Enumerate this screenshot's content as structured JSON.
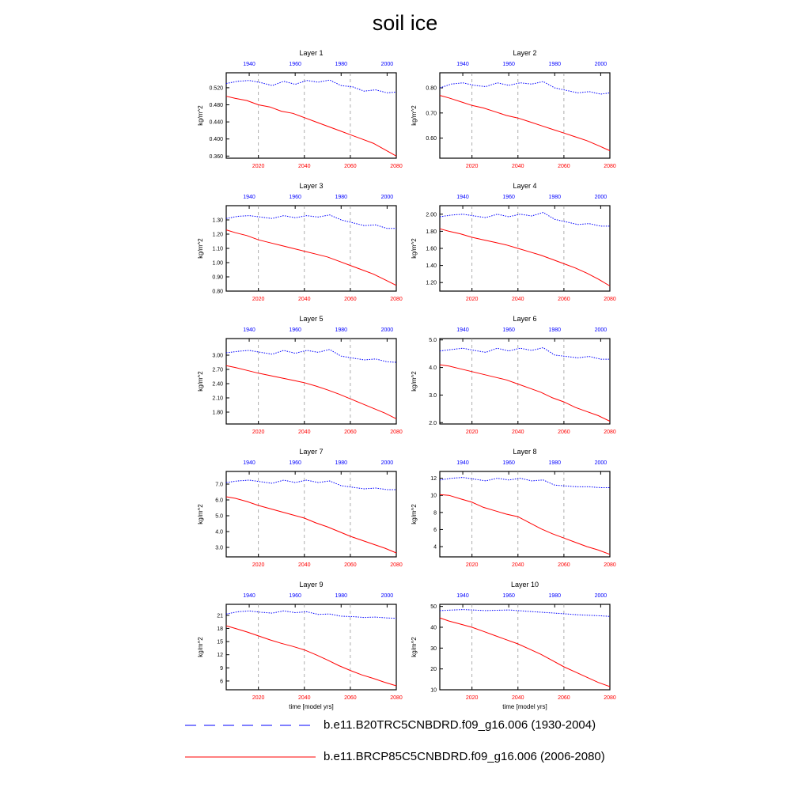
{
  "title": "soil ice",
  "legend": [
    {
      "label": "b.e11.B20TRC5CNBDRD.f09_g16.006 (1930-2004)",
      "color": "#0000ff",
      "style": "dashed"
    },
    {
      "label": "b.e11.BRCP85C5CNBDRD.f09_g16.006 (2006-2080)",
      "color": "#ff0000",
      "style": "solid"
    }
  ],
  "chart_data": [
    {
      "type": "line",
      "title": "Layer 1",
      "ylabel": "kg/m^2",
      "xlabel": "",
      "ylim": [
        0.355,
        0.555
      ],
      "yticks": [
        0.36,
        0.4,
        0.44,
        0.48,
        0.52
      ],
      "ytick_labels": [
        "0.360",
        "0.400",
        "0.440",
        "0.480",
        "0.520"
      ],
      "x_bottom_ticks": [
        "2020",
        "2040",
        "2060",
        "2080"
      ],
      "x_top_ticks": [
        "1940",
        "1960",
        "1980",
        "2000"
      ],
      "series": [
        {
          "axis": "top",
          "color": "#0000ff",
          "x": [
            1930,
            1935,
            1940,
            1945,
            1950,
            1955,
            1960,
            1965,
            1970,
            1975,
            1980,
            1985,
            1990,
            1995,
            2000,
            2004
          ],
          "y": [
            0.53,
            0.535,
            0.537,
            0.532,
            0.525,
            0.535,
            0.528,
            0.537,
            0.533,
            0.538,
            0.525,
            0.522,
            0.512,
            0.515,
            0.508,
            0.51
          ]
        },
        {
          "axis": "bottom",
          "color": "#ff0000",
          "x": [
            2006,
            2010,
            2015,
            2020,
            2025,
            2030,
            2035,
            2040,
            2045,
            2050,
            2055,
            2060,
            2065,
            2070,
            2075,
            2080
          ],
          "y": [
            0.5,
            0.495,
            0.49,
            0.48,
            0.475,
            0.465,
            0.46,
            0.45,
            0.44,
            0.43,
            0.42,
            0.41,
            0.4,
            0.39,
            0.375,
            0.36
          ]
        }
      ]
    },
    {
      "type": "line",
      "title": "Layer 2",
      "ylabel": "kg/m^2",
      "xlabel": "",
      "ylim": [
        0.52,
        0.86
      ],
      "yticks": [
        0.6,
        0.7,
        0.8
      ],
      "ytick_labels": [
        "0.60",
        "0.70",
        "0.80"
      ],
      "x_bottom_ticks": [
        "2020",
        "2040",
        "2060",
        "2080"
      ],
      "x_top_ticks": [
        "1940",
        "1960",
        "1980",
        "2000"
      ],
      "series": [
        {
          "axis": "top",
          "color": "#0000ff",
          "x": [
            1930,
            1935,
            1940,
            1945,
            1950,
            1955,
            1960,
            1965,
            1970,
            1975,
            1980,
            1985,
            1990,
            1995,
            2000,
            2004
          ],
          "y": [
            0.8,
            0.815,
            0.82,
            0.81,
            0.805,
            0.82,
            0.81,
            0.82,
            0.815,
            0.825,
            0.8,
            0.79,
            0.78,
            0.785,
            0.775,
            0.78
          ]
        },
        {
          "axis": "bottom",
          "color": "#ff0000",
          "x": [
            2006,
            2010,
            2015,
            2020,
            2025,
            2030,
            2035,
            2040,
            2045,
            2050,
            2055,
            2060,
            2065,
            2070,
            2075,
            2080
          ],
          "y": [
            0.77,
            0.76,
            0.745,
            0.73,
            0.72,
            0.705,
            0.69,
            0.68,
            0.665,
            0.65,
            0.635,
            0.62,
            0.605,
            0.59,
            0.57,
            0.55
          ]
        }
      ]
    },
    {
      "type": "line",
      "title": "Layer 3",
      "ylabel": "kg/m^2",
      "xlabel": "",
      "ylim": [
        0.8,
        1.4
      ],
      "yticks": [
        0.8,
        0.9,
        1.0,
        1.1,
        1.2,
        1.3
      ],
      "ytick_labels": [
        "0.80",
        "0.90",
        "1.00",
        "1.10",
        "1.20",
        "1.30"
      ],
      "x_bottom_ticks": [
        "2020",
        "2040",
        "2060",
        "2080"
      ],
      "x_top_ticks": [
        "1940",
        "1960",
        "1980",
        "2000"
      ],
      "series": [
        {
          "axis": "top",
          "color": "#0000ff",
          "x": [
            1930,
            1935,
            1940,
            1945,
            1950,
            1955,
            1960,
            1965,
            1970,
            1975,
            1980,
            1985,
            1990,
            1995,
            2000,
            2004
          ],
          "y": [
            1.31,
            1.325,
            1.33,
            1.32,
            1.31,
            1.33,
            1.315,
            1.33,
            1.32,
            1.335,
            1.3,
            1.28,
            1.26,
            1.265,
            1.24,
            1.24
          ]
        },
        {
          "axis": "bottom",
          "color": "#ff0000",
          "x": [
            2006,
            2010,
            2015,
            2020,
            2025,
            2030,
            2035,
            2040,
            2045,
            2050,
            2055,
            2060,
            2065,
            2070,
            2075,
            2080
          ],
          "y": [
            1.23,
            1.21,
            1.19,
            1.16,
            1.14,
            1.12,
            1.1,
            1.08,
            1.06,
            1.04,
            1.01,
            0.98,
            0.95,
            0.92,
            0.88,
            0.84
          ]
        }
      ]
    },
    {
      "type": "line",
      "title": "Layer 4",
      "ylabel": "kg/m^2",
      "xlabel": "",
      "ylim": [
        1.1,
        2.1
      ],
      "yticks": [
        1.2,
        1.4,
        1.6,
        1.8,
        2.0
      ],
      "ytick_labels": [
        "1.20",
        "1.40",
        "1.60",
        "1.80",
        "2.00"
      ],
      "x_bottom_ticks": [
        "2020",
        "2040",
        "2060",
        "2080"
      ],
      "x_top_ticks": [
        "1940",
        "1960",
        "1980",
        "2000"
      ],
      "series": [
        {
          "axis": "top",
          "color": "#0000ff",
          "x": [
            1930,
            1935,
            1940,
            1945,
            1950,
            1955,
            1960,
            1965,
            1970,
            1975,
            1980,
            1985,
            1990,
            1995,
            2000,
            2004
          ],
          "y": [
            1.97,
            1.99,
            2.0,
            1.98,
            1.96,
            2.0,
            1.97,
            2.0,
            1.98,
            2.02,
            1.94,
            1.91,
            1.88,
            1.89,
            1.86,
            1.86
          ]
        },
        {
          "axis": "bottom",
          "color": "#ff0000",
          "x": [
            2006,
            2010,
            2015,
            2020,
            2025,
            2030,
            2035,
            2040,
            2045,
            2050,
            2055,
            2060,
            2065,
            2070,
            2075,
            2080
          ],
          "y": [
            1.83,
            1.8,
            1.77,
            1.73,
            1.7,
            1.67,
            1.64,
            1.6,
            1.56,
            1.52,
            1.47,
            1.42,
            1.37,
            1.31,
            1.24,
            1.16
          ]
        }
      ]
    },
    {
      "type": "line",
      "title": "Layer 5",
      "ylabel": "kg/m^2",
      "xlabel": "",
      "ylim": [
        1.55,
        3.35
      ],
      "yticks": [
        1.8,
        2.1,
        2.4,
        2.7,
        3.0
      ],
      "ytick_labels": [
        "1.80",
        "2.10",
        "2.40",
        "2.70",
        "3.00"
      ],
      "x_bottom_ticks": [
        "2020",
        "2040",
        "2060",
        "2080"
      ],
      "x_top_ticks": [
        "1940",
        "1960",
        "1980",
        "2000"
      ],
      "series": [
        {
          "axis": "top",
          "color": "#0000ff",
          "x": [
            1930,
            1935,
            1940,
            1945,
            1950,
            1955,
            1960,
            1965,
            1970,
            1975,
            1980,
            1985,
            1990,
            1995,
            2000,
            2004
          ],
          "y": [
            3.05,
            3.08,
            3.1,
            3.06,
            3.02,
            3.1,
            3.04,
            3.1,
            3.06,
            3.12,
            2.98,
            2.94,
            2.9,
            2.92,
            2.86,
            2.85
          ]
        },
        {
          "axis": "bottom",
          "color": "#ff0000",
          "x": [
            2006,
            2010,
            2015,
            2020,
            2025,
            2030,
            2035,
            2040,
            2045,
            2050,
            2055,
            2060,
            2065,
            2070,
            2075,
            2080
          ],
          "y": [
            2.78,
            2.74,
            2.68,
            2.62,
            2.57,
            2.52,
            2.47,
            2.42,
            2.35,
            2.27,
            2.18,
            2.08,
            1.98,
            1.88,
            1.78,
            1.66
          ]
        }
      ]
    },
    {
      "type": "line",
      "title": "Layer 6",
      "ylabel": "kg/m^2",
      "xlabel": "",
      "ylim": [
        1.95,
        5.05
      ],
      "yticks": [
        2.0,
        3.0,
        4.0,
        5.0
      ],
      "ytick_labels": [
        "2.0",
        "3.0",
        "4.0",
        "5.0"
      ],
      "x_bottom_ticks": [
        "2020",
        "2040",
        "2060",
        "2080"
      ],
      "x_top_ticks": [
        "1940",
        "1960",
        "1980",
        "2000"
      ],
      "series": [
        {
          "axis": "top",
          "color": "#0000ff",
          "x": [
            1930,
            1935,
            1940,
            1945,
            1950,
            1955,
            1960,
            1965,
            1970,
            1975,
            1980,
            1985,
            1990,
            1995,
            2000,
            2004
          ],
          "y": [
            4.6,
            4.65,
            4.7,
            4.62,
            4.55,
            4.7,
            4.6,
            4.7,
            4.62,
            4.72,
            4.45,
            4.4,
            4.35,
            4.4,
            4.3,
            4.3
          ]
        },
        {
          "axis": "bottom",
          "color": "#ff0000",
          "x": [
            2006,
            2010,
            2015,
            2020,
            2025,
            2030,
            2035,
            2040,
            2045,
            2050,
            2055,
            2060,
            2065,
            2070,
            2075,
            2080
          ],
          "y": [
            4.1,
            4.05,
            3.95,
            3.85,
            3.75,
            3.65,
            3.55,
            3.4,
            3.25,
            3.1,
            2.9,
            2.75,
            2.55,
            2.4,
            2.25,
            2.05
          ]
        }
      ]
    },
    {
      "type": "line",
      "title": "Layer 7",
      "ylabel": "kg/m^2",
      "xlabel": "",
      "ylim": [
        2.4,
        7.8
      ],
      "yticks": [
        3.0,
        4.0,
        5.0,
        6.0,
        7.0
      ],
      "ytick_labels": [
        "3.0",
        "4.0",
        "5.0",
        "6.0",
        "7.0"
      ],
      "x_bottom_ticks": [
        "2020",
        "2040",
        "2060",
        "2080"
      ],
      "x_top_ticks": [
        "1940",
        "1960",
        "1980",
        "2000"
      ],
      "series": [
        {
          "axis": "top",
          "color": "#0000ff",
          "x": [
            1930,
            1935,
            1940,
            1945,
            1950,
            1955,
            1960,
            1965,
            1970,
            1975,
            1980,
            1985,
            1990,
            1995,
            2000,
            2004
          ],
          "y": [
            7.1,
            7.2,
            7.25,
            7.15,
            7.05,
            7.25,
            7.1,
            7.25,
            7.1,
            7.2,
            6.9,
            6.8,
            6.7,
            6.75,
            6.65,
            6.65
          ]
        },
        {
          "axis": "bottom",
          "color": "#ff0000",
          "x": [
            2006,
            2010,
            2015,
            2020,
            2025,
            2030,
            2035,
            2040,
            2045,
            2050,
            2055,
            2060,
            2065,
            2070,
            2075,
            2080
          ],
          "y": [
            6.2,
            6.1,
            5.9,
            5.65,
            5.45,
            5.25,
            5.05,
            4.85,
            4.55,
            4.3,
            4.0,
            3.7,
            3.45,
            3.2,
            2.95,
            2.65
          ]
        }
      ]
    },
    {
      "type": "line",
      "title": "Layer 8",
      "ylabel": "kg/m^2",
      "xlabel": "",
      "ylim": [
        2.8,
        12.8
      ],
      "yticks": [
        4,
        6,
        8,
        10,
        12
      ],
      "ytick_labels": [
        "4",
        "6",
        "8",
        "10",
        "12"
      ],
      "x_bottom_ticks": [
        "2020",
        "2040",
        "2060",
        "2080"
      ],
      "x_top_ticks": [
        "1940",
        "1960",
        "1980",
        "2000"
      ],
      "series": [
        {
          "axis": "top",
          "color": "#0000ff",
          "x": [
            1930,
            1935,
            1940,
            1945,
            1950,
            1955,
            1960,
            1965,
            1970,
            1975,
            1980,
            1985,
            1990,
            1995,
            2000,
            2004
          ],
          "y": [
            11.8,
            12.0,
            12.1,
            11.9,
            11.7,
            12.0,
            11.8,
            12.0,
            11.7,
            11.8,
            11.2,
            11.1,
            11.0,
            11.0,
            10.9,
            10.9
          ]
        },
        {
          "axis": "bottom",
          "color": "#ff0000",
          "x": [
            2006,
            2010,
            2015,
            2020,
            2025,
            2030,
            2035,
            2040,
            2045,
            2050,
            2055,
            2060,
            2065,
            2070,
            2075,
            2080
          ],
          "y": [
            10.1,
            10.0,
            9.6,
            9.2,
            8.6,
            8.2,
            7.8,
            7.5,
            6.8,
            6.1,
            5.5,
            5.0,
            4.5,
            4.0,
            3.6,
            3.1
          ]
        }
      ]
    },
    {
      "type": "line",
      "title": "Layer 9",
      "ylabel": "kg/m^2",
      "xlabel": "time [model yrs]",
      "ylim": [
        4.0,
        23.5
      ],
      "yticks": [
        6,
        9,
        12,
        15,
        18,
        21
      ],
      "ytick_labels": [
        "6",
        "9",
        "12",
        "15",
        "18",
        "21"
      ],
      "x_bottom_ticks": [
        "2020",
        "2040",
        "2060",
        "2080"
      ],
      "x_top_ticks": [
        "1940",
        "1960",
        "1980",
        "2000"
      ],
      "series": [
        {
          "axis": "top",
          "color": "#0000ff",
          "x": [
            1930,
            1935,
            1940,
            1945,
            1950,
            1955,
            1960,
            1965,
            1970,
            1975,
            1980,
            1985,
            1990,
            1995,
            2000,
            2004
          ],
          "y": [
            21.3,
            21.8,
            22.0,
            21.7,
            21.5,
            22.0,
            21.6,
            21.8,
            21.2,
            21.3,
            20.8,
            20.7,
            20.5,
            20.6,
            20.4,
            20.3
          ]
        },
        {
          "axis": "bottom",
          "color": "#ff0000",
          "x": [
            2006,
            2010,
            2015,
            2020,
            2025,
            2030,
            2035,
            2040,
            2045,
            2050,
            2055,
            2060,
            2065,
            2070,
            2075,
            2080
          ],
          "y": [
            18.6,
            18.0,
            17.2,
            16.3,
            15.4,
            14.6,
            13.9,
            13.1,
            12.0,
            10.8,
            9.5,
            8.4,
            7.4,
            6.6,
            5.7,
            4.9
          ]
        }
      ]
    },
    {
      "type": "line",
      "title": "Layer 10",
      "ylabel": "kg/m^2",
      "xlabel": "time [model yrs]",
      "ylim": [
        10,
        51
      ],
      "yticks": [
        10,
        20,
        30,
        40,
        50
      ],
      "ytick_labels": [
        "10",
        "20",
        "30",
        "40",
        "50"
      ],
      "x_bottom_ticks": [
        "2020",
        "2040",
        "2060",
        "2080"
      ],
      "x_top_ticks": [
        "1940",
        "1960",
        "1980",
        "2000"
      ],
      "series": [
        {
          "axis": "top",
          "color": "#0000ff",
          "x": [
            1930,
            1940,
            1950,
            1960,
            1970,
            1980,
            1990,
            2000,
            2004
          ],
          "y": [
            48.0,
            48.5,
            48.0,
            48.3,
            47.5,
            46.8,
            46.0,
            45.5,
            45.2
          ]
        },
        {
          "axis": "bottom",
          "color": "#ff0000",
          "x": [
            2006,
            2010,
            2015,
            2020,
            2025,
            2030,
            2035,
            2040,
            2045,
            2050,
            2055,
            2060,
            2065,
            2070,
            2075,
            2080
          ],
          "y": [
            44.5,
            43.0,
            41.5,
            40.0,
            38.0,
            36.0,
            34.0,
            32.0,
            29.5,
            27.0,
            24.0,
            21.0,
            18.5,
            16.0,
            13.5,
            11.5
          ]
        }
      ]
    }
  ]
}
